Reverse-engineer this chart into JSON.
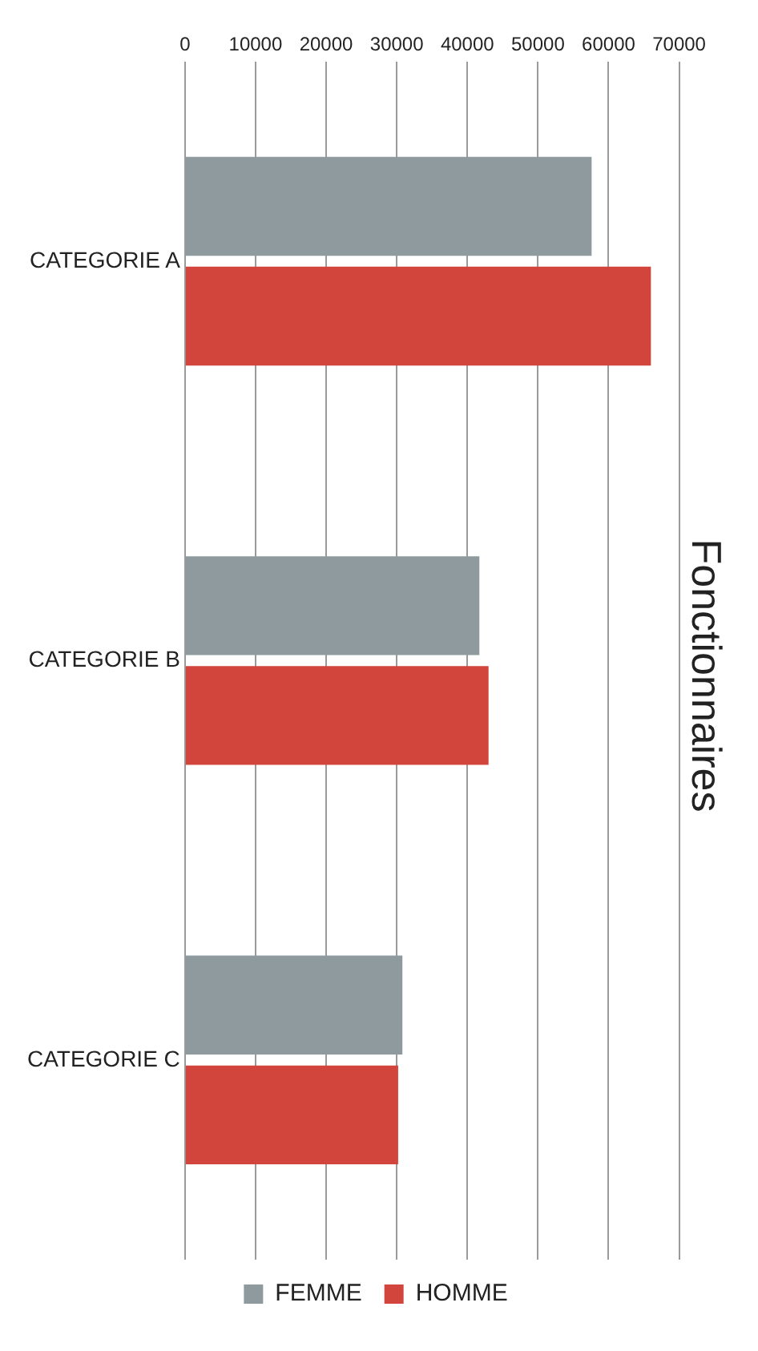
{
  "chart_data": {
    "type": "bar",
    "orientation": "horizontal",
    "title": "Fonctionnaires",
    "categories": [
      "CATEGORIE A",
      "CATEGORIE B",
      "CATEGORIE C"
    ],
    "series": [
      {
        "name": "FEMME",
        "color": "#8e9a9e",
        "values": [
          57600,
          41700,
          30800
        ]
      },
      {
        "name": "HOMME",
        "color": "#d2453d",
        "values": [
          66000,
          43000,
          30200
        ]
      }
    ],
    "xlim": [
      0,
      70000
    ],
    "xticks": [
      0,
      10000,
      20000,
      30000,
      40000,
      50000,
      60000,
      70000
    ],
    "grid": "x",
    "legend": "bottom"
  }
}
